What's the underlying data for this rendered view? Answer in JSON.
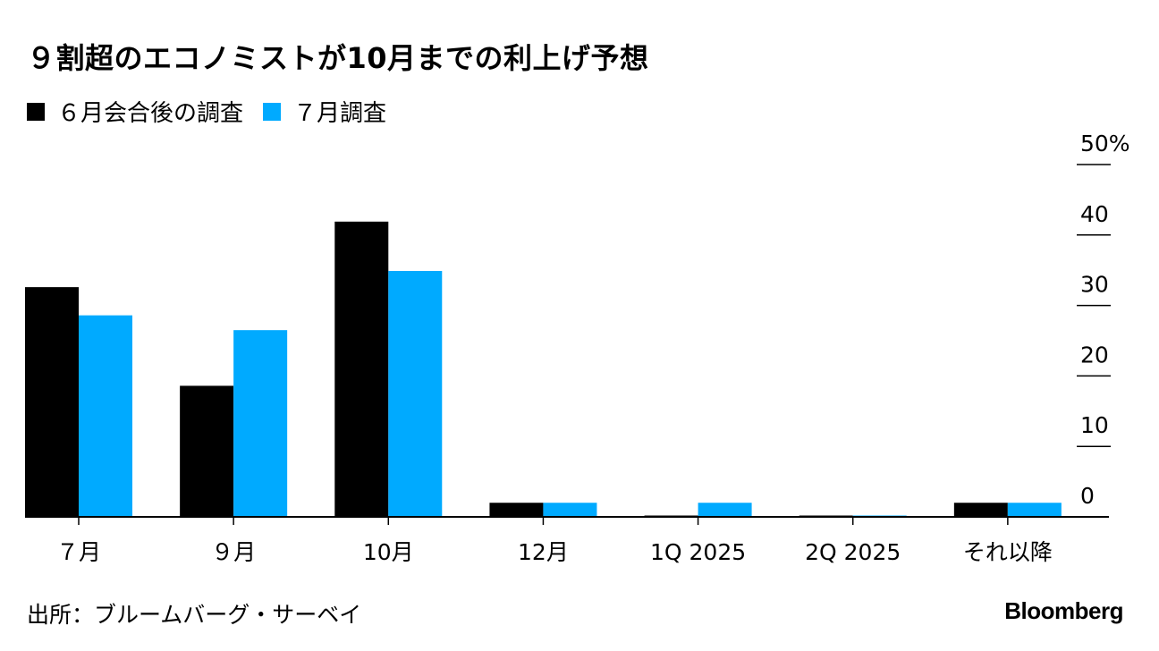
{
  "header": {
    "title": "９割超のエコノミストが10月までの利上げ予想"
  },
  "legend": {
    "items": [
      {
        "label": "６月会合後の調査",
        "color": "#000000"
      },
      {
        "label": "７月調査",
        "color": "#00aaff"
      }
    ]
  },
  "chart_data": {
    "type": "bar",
    "title": "９割超のエコノミストが10月までの利上げ予想",
    "categories": [
      "７月",
      "９月",
      "10月",
      "12月",
      "1Q 2025",
      "2Q 2025",
      "それ以降"
    ],
    "series": [
      {
        "name": "６月会合後の調査",
        "color": "#000000",
        "values": [
          32.6,
          18.6,
          41.9,
          2.0,
          0,
          0,
          2.0
        ]
      },
      {
        "name": "７月調査",
        "color": "#00aaff",
        "values": [
          28.6,
          26.5,
          34.9,
          2.0,
          2.0,
          0,
          2.0
        ]
      }
    ],
    "yticks": [
      0,
      10,
      20,
      30,
      40,
      50
    ],
    "ytick_labels": [
      "0",
      "10",
      "20",
      "30",
      "40",
      "50%"
    ],
    "ylim": [
      0,
      50
    ],
    "axis_position": "right",
    "xlabel": "",
    "ylabel": ""
  },
  "footer": {
    "source": "出所：ブルームバーグ・サーベイ",
    "brand": "Bloomberg"
  }
}
